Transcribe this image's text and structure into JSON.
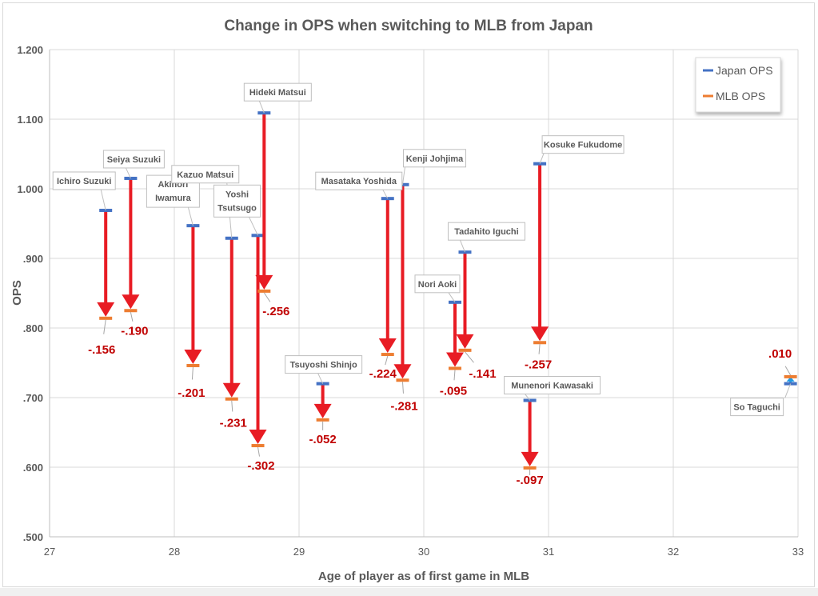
{
  "chart_data": {
    "type": "scatter",
    "title": "Change in OPS when switching to MLB from Japan",
    "xlabel": "Age of player as of first game in MLB",
    "ylabel": "OPS",
    "xlim": [
      27,
      33
    ],
    "ylim": [
      0.5,
      1.2
    ],
    "x_ticks": [
      "27",
      "28",
      "29",
      "30",
      "31",
      "32",
      "33"
    ],
    "y_ticks": [
      ".500",
      ".600",
      ".700",
      ".800",
      ".900",
      "1.000",
      "1.100",
      "1.200"
    ],
    "grid": true,
    "legend": {
      "placement": "top-right",
      "entries": [
        {
          "label": "Japan OPS",
          "color": "#4472c4"
        },
        {
          "label": "MLB OPS",
          "color": "#ed7d31"
        }
      ]
    },
    "colors": {
      "japan": "#4472c4",
      "mlb": "#ed7d31",
      "decline_arrow": "#e81c24",
      "improve_arrow": "#1e9be6",
      "delta_text": "#c00000"
    },
    "players": [
      {
        "name": "Ichiro Suzuki",
        "age": 27.45,
        "japan_ops": 0.969,
        "mlb_ops": 0.814,
        "change": "-.156"
      },
      {
        "name": "Seiya Suzuki",
        "age": 27.65,
        "japan_ops": 1.015,
        "mlb_ops": 0.825,
        "change": "-.190"
      },
      {
        "name": "Akinori Iwamura",
        "age": 28.15,
        "japan_ops": 0.947,
        "mlb_ops": 0.746,
        "change": "-.201"
      },
      {
        "name": "Kazuo Matsui",
        "age": 28.46,
        "japan_ops": 0.929,
        "mlb_ops": 0.698,
        "change": "-.231"
      },
      {
        "name": "Yoshi Tsutsugo",
        "age": 28.67,
        "japan_ops": 0.933,
        "mlb_ops": 0.631,
        "change": "-.302"
      },
      {
        "name": "Hideki Matsui",
        "age": 28.72,
        "japan_ops": 1.109,
        "mlb_ops": 0.853,
        "change": "-.256"
      },
      {
        "name": "Tsuyoshi Shinjo",
        "age": 29.19,
        "japan_ops": 0.72,
        "mlb_ops": 0.668,
        "change": "-.052"
      },
      {
        "name": "Masataka Yoshida",
        "age": 29.71,
        "japan_ops": 0.986,
        "mlb_ops": 0.762,
        "change": "-.224"
      },
      {
        "name": "Kenji Johjima",
        "age": 29.83,
        "japan_ops": 1.006,
        "mlb_ops": 0.725,
        "change": "-.281"
      },
      {
        "name": "Nori Aoki",
        "age": 30.25,
        "japan_ops": 0.837,
        "mlb_ops": 0.742,
        "change": "-.095"
      },
      {
        "name": "Tadahito Iguchi",
        "age": 30.33,
        "japan_ops": 0.909,
        "mlb_ops": 0.768,
        "change": "-.141"
      },
      {
        "name": "Munenori Kawasaki",
        "age": 30.85,
        "japan_ops": 0.696,
        "mlb_ops": 0.599,
        "change": "-.097"
      },
      {
        "name": "Kosuke Fukudome",
        "age": 30.93,
        "japan_ops": 1.036,
        "mlb_ops": 0.779,
        "change": "-.257"
      },
      {
        "name": "So Taguchi",
        "age": 32.94,
        "japan_ops": 0.72,
        "mlb_ops": 0.73,
        "change": ".010"
      }
    ]
  }
}
